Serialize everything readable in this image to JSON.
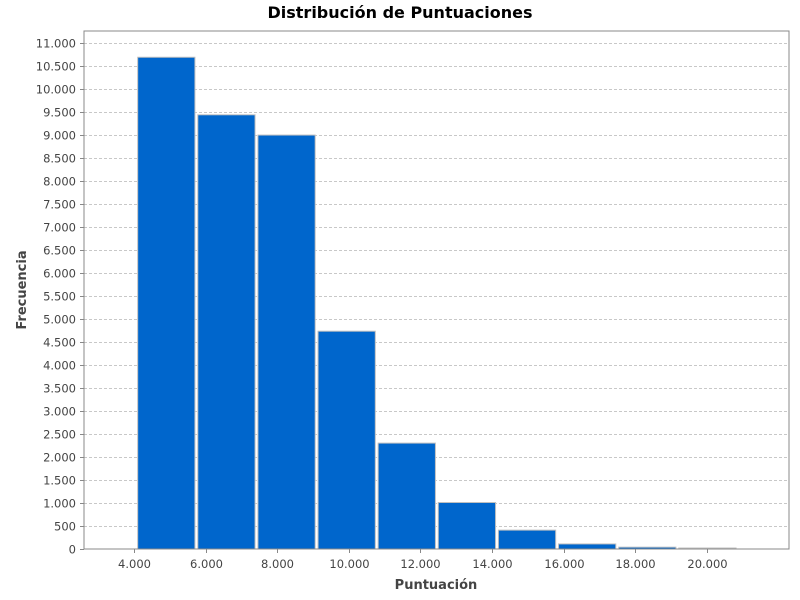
{
  "chart_data": {
    "type": "bar",
    "title": "Distribución de Puntuaciones",
    "xlabel": "Puntuación",
    "ylabel": "Frecuencia",
    "bins": [
      {
        "x0": 4100,
        "x1": 5700,
        "value": 10680
      },
      {
        "x0": 5780,
        "x1": 7380,
        "value": 9430
      },
      {
        "x0": 7460,
        "x1": 9060,
        "value": 8990
      },
      {
        "x0": 9140,
        "x1": 10740,
        "value": 4730
      },
      {
        "x0": 10820,
        "x1": 12420,
        "value": 2300
      },
      {
        "x0": 12500,
        "x1": 14100,
        "value": 1010
      },
      {
        "x0": 14180,
        "x1": 15780,
        "value": 410
      },
      {
        "x0": 15860,
        "x1": 17460,
        "value": 110
      },
      {
        "x0": 17540,
        "x1": 19140,
        "value": 40
      },
      {
        "x0": 19220,
        "x1": 20820,
        "value": 10
      }
    ],
    "xlim": [
      2600,
      22300
    ],
    "ylim": [
      0,
      11250
    ],
    "xticks": [
      4000,
      6000,
      8000,
      10000,
      12000,
      14000,
      16000,
      18000,
      20000
    ],
    "xtick_labels": [
      "4.000",
      "6.000",
      "8.000",
      "10.000",
      "12.000",
      "14.000",
      "16.000",
      "18.000",
      "20.000"
    ],
    "yticks": [
      0,
      500,
      1000,
      1500,
      2000,
      2500,
      3000,
      3500,
      4000,
      4500,
      5000,
      5500,
      6000,
      6500,
      7000,
      7500,
      8000,
      8500,
      9000,
      9500,
      10000,
      10500,
      11000
    ],
    "ytick_labels": [
      "0",
      "500",
      "1.000",
      "1.500",
      "2.000",
      "2.500",
      "3.000",
      "3.500",
      "4.000",
      "4.500",
      "5.000",
      "5.500",
      "6.000",
      "6.500",
      "7.000",
      "7.500",
      "8.000",
      "8.500",
      "9.000",
      "9.500",
      "10.000",
      "10.500",
      "11.000"
    ],
    "grid": true,
    "colors": {
      "bar_fill": "#0066CC",
      "bar_stroke": "#C0C0C0",
      "grid": "#C8C8C8",
      "axis": "#888888"
    }
  }
}
